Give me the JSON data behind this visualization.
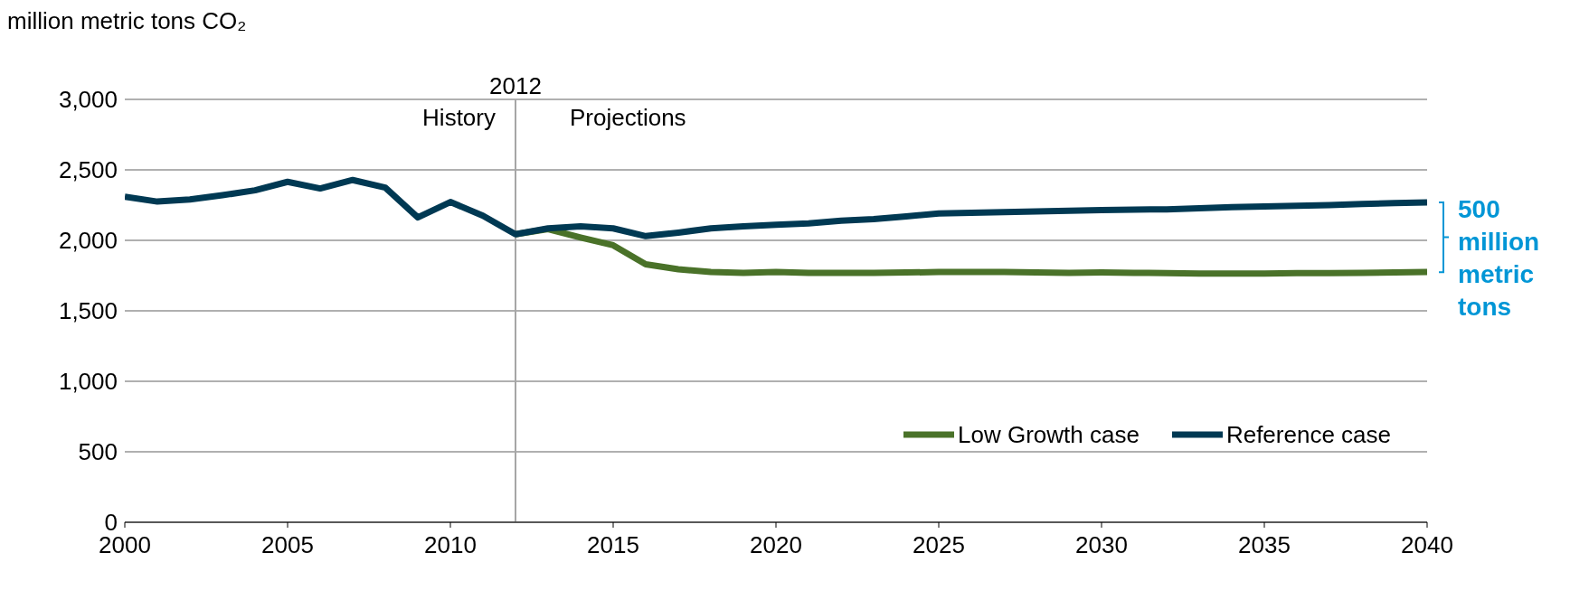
{
  "chart_data": {
    "type": "line",
    "ylabel": "million metric tons CO₂",
    "x": [
      2000,
      2001,
      2002,
      2003,
      2004,
      2005,
      2006,
      2007,
      2008,
      2009,
      2010,
      2011,
      2012,
      2013,
      2014,
      2015,
      2016,
      2017,
      2018,
      2019,
      2020,
      2021,
      2022,
      2023,
      2024,
      2025,
      2026,
      2027,
      2028,
      2029,
      2030,
      2031,
      2032,
      2033,
      2034,
      2035,
      2036,
      2037,
      2038,
      2039,
      2040
    ],
    "series": [
      {
        "name": "Low Growth case",
        "color": "#4a7229",
        "values": [
          null,
          null,
          null,
          null,
          null,
          null,
          null,
          null,
          null,
          null,
          null,
          null,
          2043,
          2080,
          2020,
          1965,
          1830,
          1795,
          1775,
          1770,
          1775,
          1770,
          1770,
          1770,
          1772,
          1775,
          1775,
          1775,
          1772,
          1770,
          1772,
          1770,
          1768,
          1765,
          1765,
          1765,
          1768,
          1768,
          1770,
          1772,
          1775
        ]
      },
      {
        "name": "Reference case",
        "color": "#003953",
        "values": [
          2310,
          2275,
          2290,
          2320,
          2355,
          2415,
          2368,
          2428,
          2374,
          2163,
          2272,
          2175,
          2043,
          2085,
          2100,
          2085,
          2030,
          2055,
          2085,
          2100,
          2110,
          2120,
          2140,
          2150,
          2170,
          2190,
          2195,
          2200,
          2205,
          2210,
          2215,
          2218,
          2220,
          2228,
          2235,
          2240,
          2245,
          2250,
          2258,
          2265,
          2270
        ]
      }
    ],
    "xlim": [
      2000,
      2040
    ],
    "xticks": [
      2000,
      2005,
      2010,
      2015,
      2020,
      2025,
      2030,
      2035,
      2040
    ],
    "ylim": [
      0,
      3000
    ],
    "yticks": [
      0,
      500,
      {
        "value": 1000,
        "label": "1,000"
      },
      {
        "value": 1500,
        "label": "1,500"
      },
      {
        "value": 2000,
        "label": "2,000"
      },
      {
        "value": 2500,
        "label": "2,500"
      },
      {
        "value": 3000,
        "label": "3,000"
      }
    ],
    "ref_lines": [
      {
        "axis": "x",
        "value": 2012,
        "label": "2012",
        "color": "#a6a6a6"
      }
    ],
    "annotations": [
      "History",
      "Projections",
      "500 million metric tons"
    ],
    "grid": "y",
    "legend": "bottom right",
    "marker": "none",
    "line_style": "solid"
  }
}
